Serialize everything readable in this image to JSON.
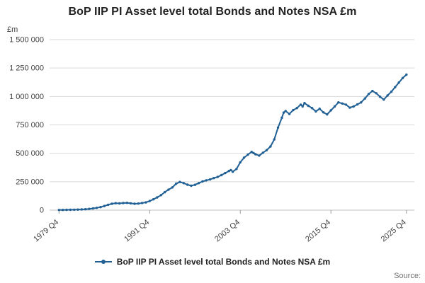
{
  "page": {
    "source_label": "Source:"
  },
  "chart_data": {
    "type": "line",
    "title": "BoP IIP PI Asset level total Bonds and Notes NSA £m",
    "unit_label": "£m",
    "xlabel": "",
    "ylabel": "£m",
    "ylim": [
      0,
      1500000
    ],
    "xlim": [
      1978.5,
      2026.8
    ],
    "grid": "horizontal",
    "legend_position": "bottom",
    "line_color": "#206095",
    "grid_color": "#d9d9d9",
    "text_color": "#414042",
    "y_ticks": [
      0,
      250000,
      500000,
      750000,
      1000000,
      1250000,
      1500000
    ],
    "y_tick_labels": [
      "0",
      "250 000",
      "500 000",
      "750 000",
      "1 000 000",
      "1 250 000",
      "1 500 000"
    ],
    "x_ticks": [
      1979.75,
      1991.75,
      2003.75,
      2015.75,
      2025.75
    ],
    "x_tick_labels": [
      "1979 Q4",
      "1991 Q4",
      "2003 Q4",
      "2015 Q4",
      "2025 Q4"
    ],
    "series": [
      {
        "name": "BoP IIP PI Asset level total Bonds and Notes NSA £m",
        "color": "#206095",
        "points": [
          [
            1979.75,
            1500
          ],
          [
            1980.25,
            2000
          ],
          [
            1980.75,
            2500
          ],
          [
            1981.25,
            3000
          ],
          [
            1981.75,
            3800
          ],
          [
            1982.25,
            4800
          ],
          [
            1982.75,
            6000
          ],
          [
            1983.25,
            8000
          ],
          [
            1983.75,
            11000
          ],
          [
            1984.25,
            15000
          ],
          [
            1984.75,
            20000
          ],
          [
            1985.25,
            27000
          ],
          [
            1985.75,
            36000
          ],
          [
            1986.25,
            47000
          ],
          [
            1986.75,
            56000
          ],
          [
            1987.25,
            61000
          ],
          [
            1987.75,
            59000
          ],
          [
            1988.25,
            62000
          ],
          [
            1988.75,
            64000
          ],
          [
            1989.25,
            60000
          ],
          [
            1989.75,
            56000
          ],
          [
            1990.25,
            58000
          ],
          [
            1990.75,
            63000
          ],
          [
            1991.25,
            68000
          ],
          [
            1991.75,
            80000
          ],
          [
            1992.25,
            95000
          ],
          [
            1992.75,
            112000
          ],
          [
            1993.25,
            132000
          ],
          [
            1993.75,
            158000
          ],
          [
            1994.25,
            180000
          ],
          [
            1994.75,
            200000
          ],
          [
            1995.25,
            232000
          ],
          [
            1995.75,
            248000
          ],
          [
            1996.25,
            238000
          ],
          [
            1996.75,
            224000
          ],
          [
            1997.25,
            215000
          ],
          [
            1997.75,
            223000
          ],
          [
            1998.25,
            238000
          ],
          [
            1998.75,
            252000
          ],
          [
            1999.25,
            262000
          ],
          [
            1999.75,
            270000
          ],
          [
            2000.25,
            282000
          ],
          [
            2000.75,
            292000
          ],
          [
            2001.25,
            308000
          ],
          [
            2001.75,
            326000
          ],
          [
            2002.25,
            344000
          ],
          [
            2002.5,
            352000
          ],
          [
            2002.75,
            338000
          ],
          [
            2003.25,
            362000
          ],
          [
            2003.75,
            420000
          ],
          [
            2004.25,
            462000
          ],
          [
            2004.75,
            488000
          ],
          [
            2005.25,
            512000
          ],
          [
            2005.5,
            502000
          ],
          [
            2005.75,
            492000
          ],
          [
            2006.25,
            480000
          ],
          [
            2006.75,
            505000
          ],
          [
            2007.25,
            528000
          ],
          [
            2007.75,
            560000
          ],
          [
            2008.25,
            622000
          ],
          [
            2008.75,
            726000
          ],
          [
            2009.25,
            812000
          ],
          [
            2009.5,
            858000
          ],
          [
            2009.75,
            872000
          ],
          [
            2010.25,
            846000
          ],
          [
            2010.75,
            880000
          ],
          [
            2011.25,
            898000
          ],
          [
            2011.75,
            928000
          ],
          [
            2012,
            912000
          ],
          [
            2012.25,
            942000
          ],
          [
            2012.75,
            918000
          ],
          [
            2013.25,
            898000
          ],
          [
            2013.75,
            868000
          ],
          [
            2014.25,
            892000
          ],
          [
            2014.75,
            860000
          ],
          [
            2015.25,
            842000
          ],
          [
            2015.75,
            878000
          ],
          [
            2016.25,
            912000
          ],
          [
            2016.75,
            948000
          ],
          [
            2017.25,
            938000
          ],
          [
            2017.75,
            928000
          ],
          [
            2018.25,
            902000
          ],
          [
            2018.75,
            912000
          ],
          [
            2019.25,
            930000
          ],
          [
            2019.75,
            948000
          ],
          [
            2020.25,
            982000
          ],
          [
            2020.75,
            1022000
          ],
          [
            2021.25,
            1048000
          ],
          [
            2021.75,
            1028000
          ],
          [
            2022.25,
            998000
          ],
          [
            2022.75,
            972000
          ],
          [
            2023.25,
            1008000
          ],
          [
            2023.75,
            1042000
          ],
          [
            2024.25,
            1082000
          ],
          [
            2024.75,
            1122000
          ],
          [
            2025.25,
            1162000
          ],
          [
            2025.75,
            1192000
          ]
        ]
      }
    ]
  }
}
